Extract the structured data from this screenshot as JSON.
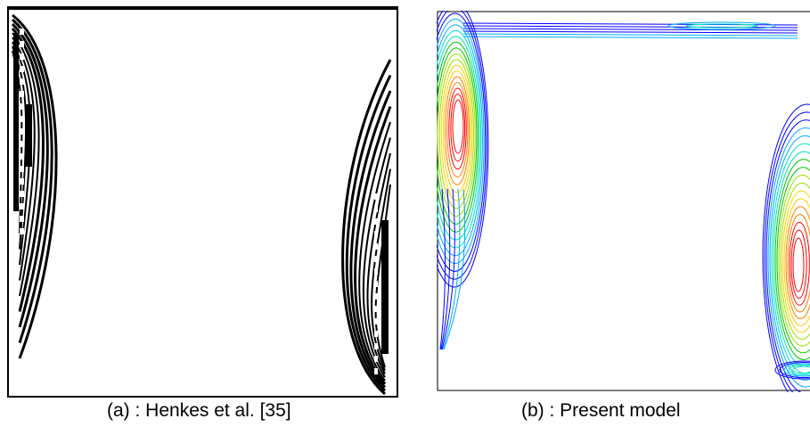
{
  "figure": {
    "panel_a": {
      "caption": "(a) : Henkes et al. [35]",
      "style": "monochrome",
      "line_color": "#000000"
    },
    "panel_b": {
      "caption": "(b) : Present model",
      "style": "colored contours",
      "palette": [
        "#0000ff",
        "#00aaff",
        "#00e0c0",
        "#00c800",
        "#a0e000",
        "#ffd000",
        "#ff8000",
        "#ff0000"
      ]
    }
  }
}
